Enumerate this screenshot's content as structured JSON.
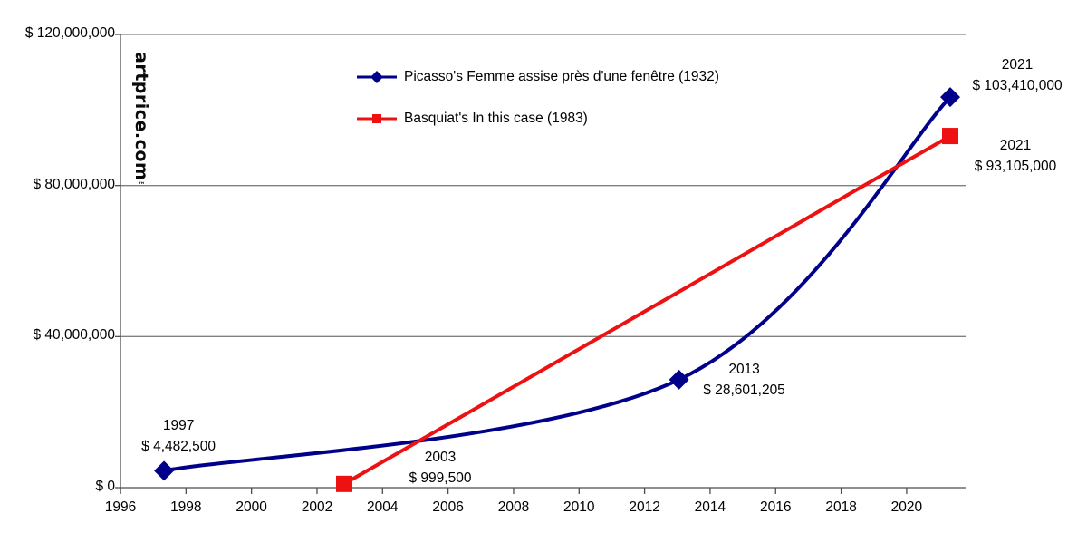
{
  "branding": {
    "logo": "artprice.com",
    "trademark": "™"
  },
  "chart_data": {
    "type": "line",
    "title": "",
    "background": "#ffffff",
    "grid_color": "#808080",
    "axis_color": "#4d4d4d",
    "text_color": "#000000",
    "grid": true,
    "legend_position": "top-center",
    "x_axis": {
      "min": 1996,
      "max": 2021.8,
      "ticks": [
        1996,
        1998,
        2000,
        2002,
        2004,
        2006,
        2008,
        2010,
        2012,
        2014,
        2016,
        2018,
        2020
      ]
    },
    "y_axis": {
      "min": 0,
      "max": 120000000,
      "ticks": [
        {
          "value": 0,
          "label": "$ 0"
        },
        {
          "value": 40000000,
          "label": "$ 40,000,000"
        },
        {
          "value": 80000000,
          "label": "$ 80,000,000"
        },
        {
          "value": 120000000,
          "label": "$ 120,000,000"
        }
      ]
    },
    "series": [
      {
        "name": "Picasso's Femme assise près d'une fenêtre (1932)",
        "color": "#00008B",
        "marker": "diamond",
        "smooth": true,
        "points": [
          {
            "year": 1997,
            "x": 1997.33,
            "value": 4482500,
            "label": [
              "1997",
              "$ 4,482,500"
            ],
            "label_dx": 16,
            "label_dy": -38
          },
          {
            "year": 2013,
            "x": 2013.05,
            "value": 28601205,
            "label": [
              "2013",
              "$ 28,601,205"
            ],
            "label_dx": 72,
            "label_dy": 0
          },
          {
            "year": 2021,
            "x": 2021.33,
            "value": 103410000,
            "label": [
              "2021",
              "$ 103,410,000"
            ],
            "label_dx": 74,
            "label_dy": -24
          }
        ]
      },
      {
        "name": "Basquiat's In this case (1983)",
        "color": "#EE1111",
        "marker": "square",
        "smooth": false,
        "points": [
          {
            "year": 2003,
            "x": 2002.83,
            "value": 999500,
            "label": [
              "2003",
              "$ 999,500"
            ],
            "label_dx": 106,
            "label_dy": -18
          },
          {
            "year": 2021,
            "x": 2021.33,
            "value": 93105000,
            "label": [
              "2021",
              "$ 93,105,000"
            ],
            "label_dx": 72,
            "label_dy": 22
          }
        ]
      }
    ]
  }
}
